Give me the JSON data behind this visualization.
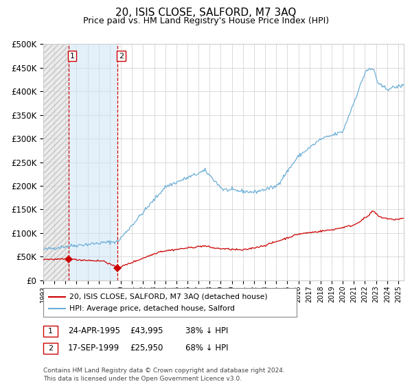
{
  "title": "20, ISIS CLOSE, SALFORD, M7 3AQ",
  "subtitle": "Price paid vs. HM Land Registry's House Price Index (HPI)",
  "legend_line1": "20, ISIS CLOSE, SALFORD, M7 3AQ (detached house)",
  "legend_line2": "HPI: Average price, detached house, Salford",
  "annotation1_label": "1",
  "annotation1_date": "24-APR-1995",
  "annotation1_price": "£43,995",
  "annotation1_hpi": "38% ↓ HPI",
  "annotation2_label": "2",
  "annotation2_date": "17-SEP-1999",
  "annotation2_price": "£25,950",
  "annotation2_hpi": "68% ↓ HPI",
  "footnote_line1": "Contains HM Land Registry data © Crown copyright and database right 2024.",
  "footnote_line2": "This data is licensed under the Open Government Licence v3.0.",
  "hpi_color": "#6baed6",
  "price_color": "#cc0000",
  "marker_color": "#cc0000",
  "sale1_x": 1995.3,
  "sale1_y": 43995,
  "sale2_x": 1999.71,
  "sale2_y": 25950,
  "ylim": [
    0,
    500000
  ],
  "xlim_start": 1993.0,
  "xlim_end": 2025.5,
  "background_color": "#ffffff",
  "grid_color": "#cccccc"
}
